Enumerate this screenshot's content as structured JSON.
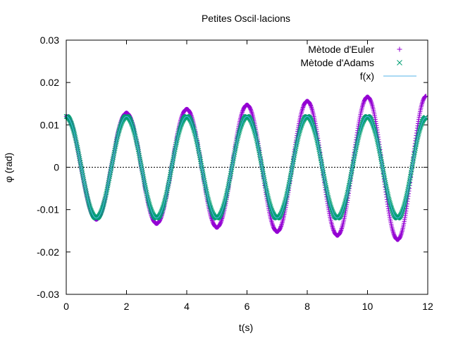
{
  "chart_data": {
    "type": "scatter",
    "title": "Petites Oscil·lacions",
    "xlabel": "t(s)",
    "ylabel": "φ (rad)",
    "xlim": [
      0,
      12
    ],
    "ylim": [
      -0.03,
      0.03
    ],
    "x_ticks": [
      "0",
      "2",
      "4",
      "6",
      "8",
      "10",
      "12"
    ],
    "y_ticks": [
      "-0.03",
      "-0.02",
      "-0.01",
      "0",
      "0.01",
      "0.02",
      "0.03"
    ],
    "legend_position": "top-right",
    "zero_line": true,
    "series": [
      {
        "name": "Mètode d'Euler",
        "style": "plus",
        "color": "#9400d3",
        "t": [
          0,
          1,
          2,
          3,
          4,
          5,
          6,
          7,
          8,
          9,
          10,
          11,
          11.95
        ],
        "phi": [
          0.012,
          -0.0123,
          0.0128,
          -0.0133,
          0.0137,
          -0.0142,
          0.0147,
          -0.0152,
          0.0156,
          -0.0161,
          0.0166,
          -0.0171,
          0.0168
        ]
      },
      {
        "name": "Mètode d'Adams",
        "style": "cross",
        "color": "#009e73",
        "t": [
          0,
          1,
          2,
          3,
          4,
          5,
          6,
          7,
          8,
          9,
          10,
          11,
          11.95
        ],
        "phi": [
          0.012,
          -0.012,
          0.012,
          -0.012,
          0.012,
          -0.012,
          0.012,
          -0.012,
          0.012,
          -0.012,
          0.012,
          -0.012,
          0.0118
        ]
      },
      {
        "name": "f(x)",
        "style": "line",
        "color": "#56b4e9",
        "t": [
          0,
          1,
          2,
          3,
          4,
          5,
          6,
          7,
          8,
          9,
          10,
          11,
          11.95
        ],
        "phi": [
          0.012,
          -0.012,
          0.012,
          -0.012,
          0.012,
          -0.012,
          0.012,
          -0.012,
          0.012,
          -0.012,
          0.012,
          -0.012,
          0.0118
        ]
      }
    ]
  }
}
